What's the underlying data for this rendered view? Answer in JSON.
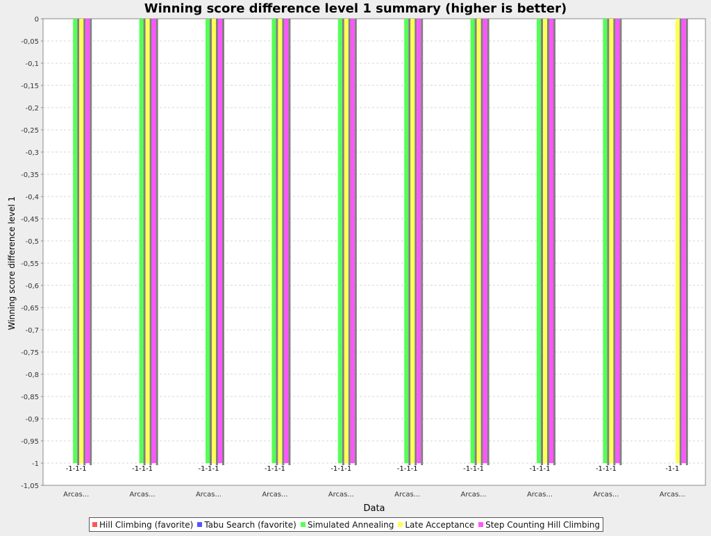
{
  "chart_data": {
    "type": "bar",
    "title": "Winning score difference level 1 summary (higher is better)",
    "xlabel": "Data",
    "ylabel": "Winning score difference level 1",
    "ylim": [
      -1.05,
      0
    ],
    "ytick_step": 0.05,
    "ytick_labels": [
      "0",
      "-0,05",
      "-0,1",
      "-0,15",
      "-0,2",
      "-0,25",
      "-0,3",
      "-0,35",
      "-0,4",
      "-0,45",
      "-0,5",
      "-0,55",
      "-0,6",
      "-0,65",
      "-0,7",
      "-0,75",
      "-0,8",
      "-0,85",
      "-0,9",
      "-0,95",
      "-1",
      "-1,05"
    ],
    "grid": true,
    "legend_position": "bottom",
    "categories": [
      "Arcas...",
      "Arcas...",
      "Arcas...",
      "Arcas...",
      "Arcas...",
      "Arcas...",
      "Arcas...",
      "Arcas...",
      "Arcas...",
      "Arcas..."
    ],
    "series": [
      {
        "name": "Hill Climbing (favorite)",
        "color": "#ff5555",
        "values": [
          null,
          null,
          null,
          null,
          null,
          null,
          null,
          null,
          null,
          null
        ]
      },
      {
        "name": "Tabu Search (favorite)",
        "color": "#5555ff",
        "values": [
          null,
          null,
          null,
          null,
          null,
          null,
          null,
          null,
          null,
          null
        ]
      },
      {
        "name": "Simulated Annealing",
        "color": "#55ff55",
        "values": [
          -1,
          -1,
          -1,
          -1,
          -1,
          -1,
          -1,
          -1,
          -1,
          null
        ]
      },
      {
        "name": "Late Acceptance",
        "color": "#ffff55",
        "values": [
          -1,
          -1,
          -1,
          -1,
          -1,
          -1,
          -1,
          -1,
          -1,
          -1
        ]
      },
      {
        "name": "Step Counting Hill Climbing",
        "color": "#ff55ff",
        "values": [
          -1,
          -1,
          -1,
          -1,
          -1,
          -1,
          -1,
          -1,
          -1,
          -1
        ]
      }
    ],
    "data_labels": [
      "-1-1-1",
      "-1-1-1",
      "-1-1-1",
      "-1-1-1",
      "-1-1-1",
      "-1-1-1",
      "-1-1-1",
      "-1-1-1",
      "-1-1-1",
      "-1-1"
    ]
  }
}
